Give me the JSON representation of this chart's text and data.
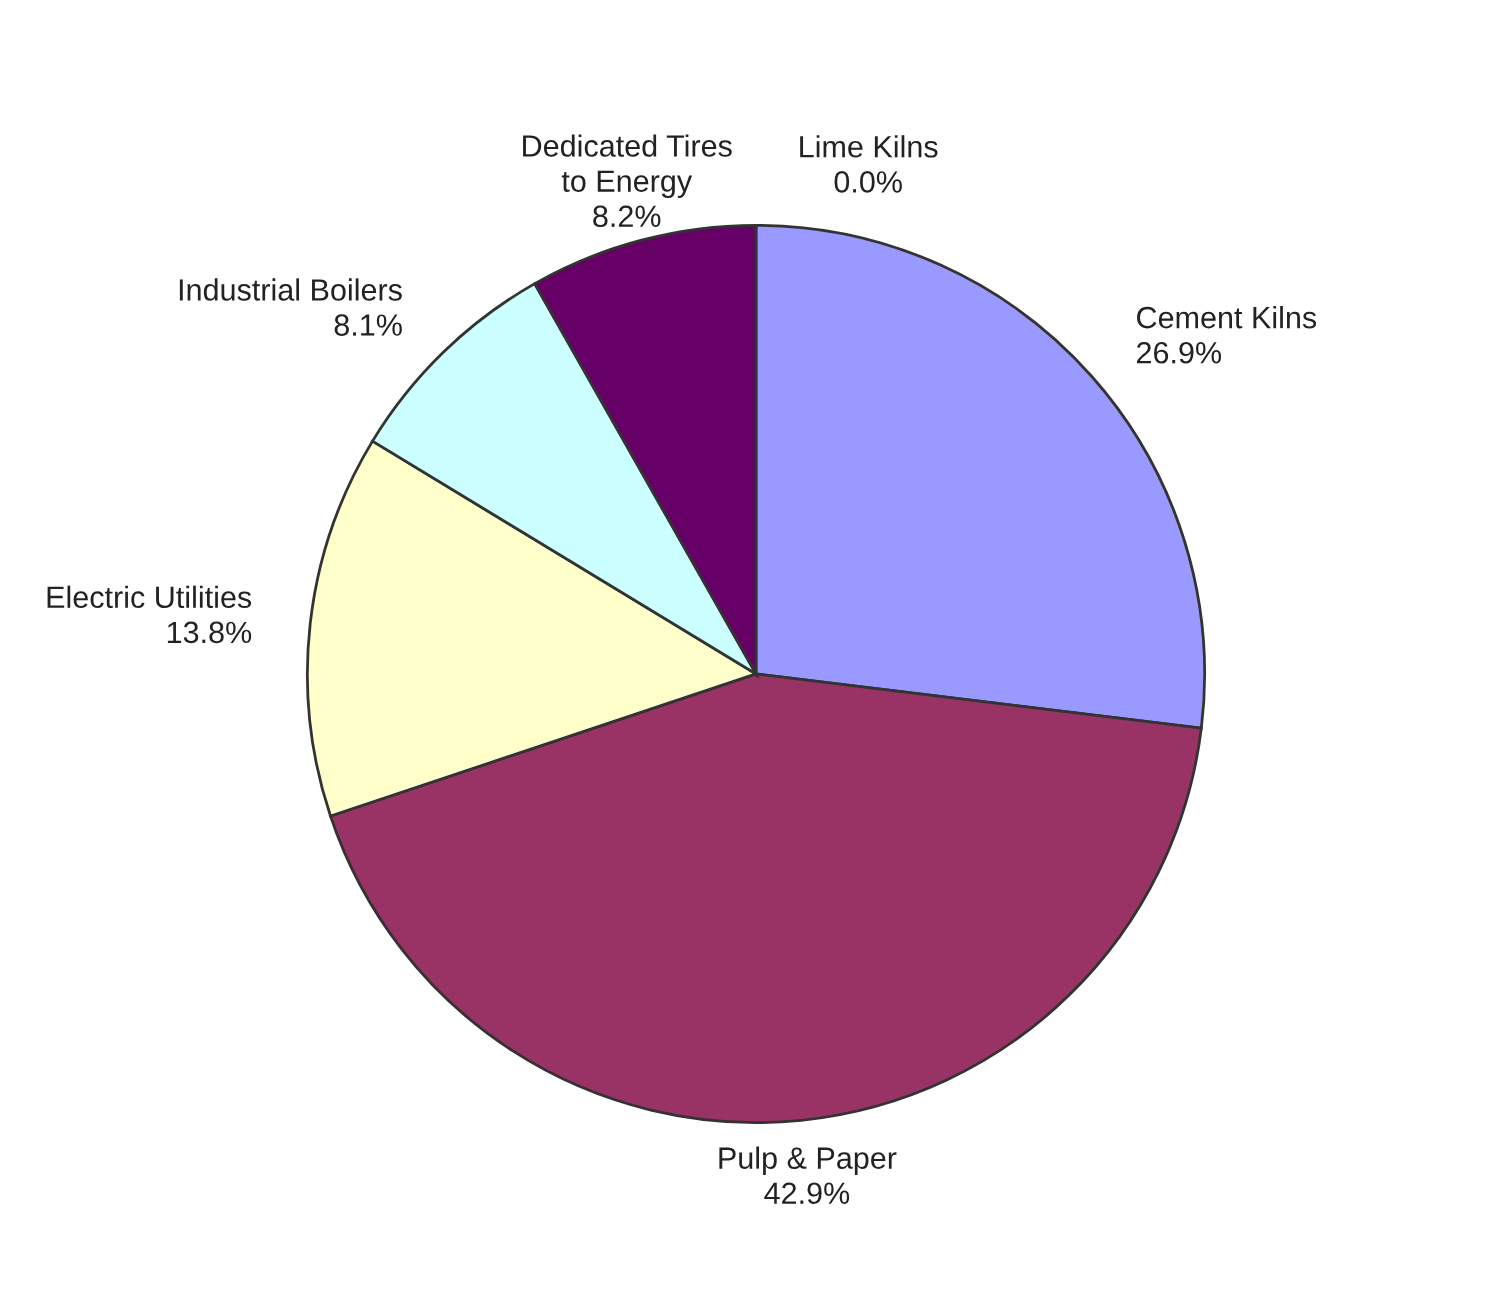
{
  "chart_data": {
    "type": "pie",
    "categories": [
      "Lime Kilns",
      "Cement Kilns",
      "Pulp & Paper",
      "Electric Utilities",
      "Industrial Boilers",
      "Dedicated Tires\nto Energy"
    ],
    "values": [
      0.0,
      26.9,
      42.9,
      13.8,
      8.1,
      8.2
    ],
    "value_labels": [
      "0.0%",
      "26.9%",
      "42.9%",
      "13.8%",
      "8.1%",
      "8.2%"
    ],
    "colors": [
      "#ffffff",
      "#9999ff",
      "#993366",
      "#ffffcc",
      "#ccffff",
      "#660066"
    ],
    "legend": false
  }
}
